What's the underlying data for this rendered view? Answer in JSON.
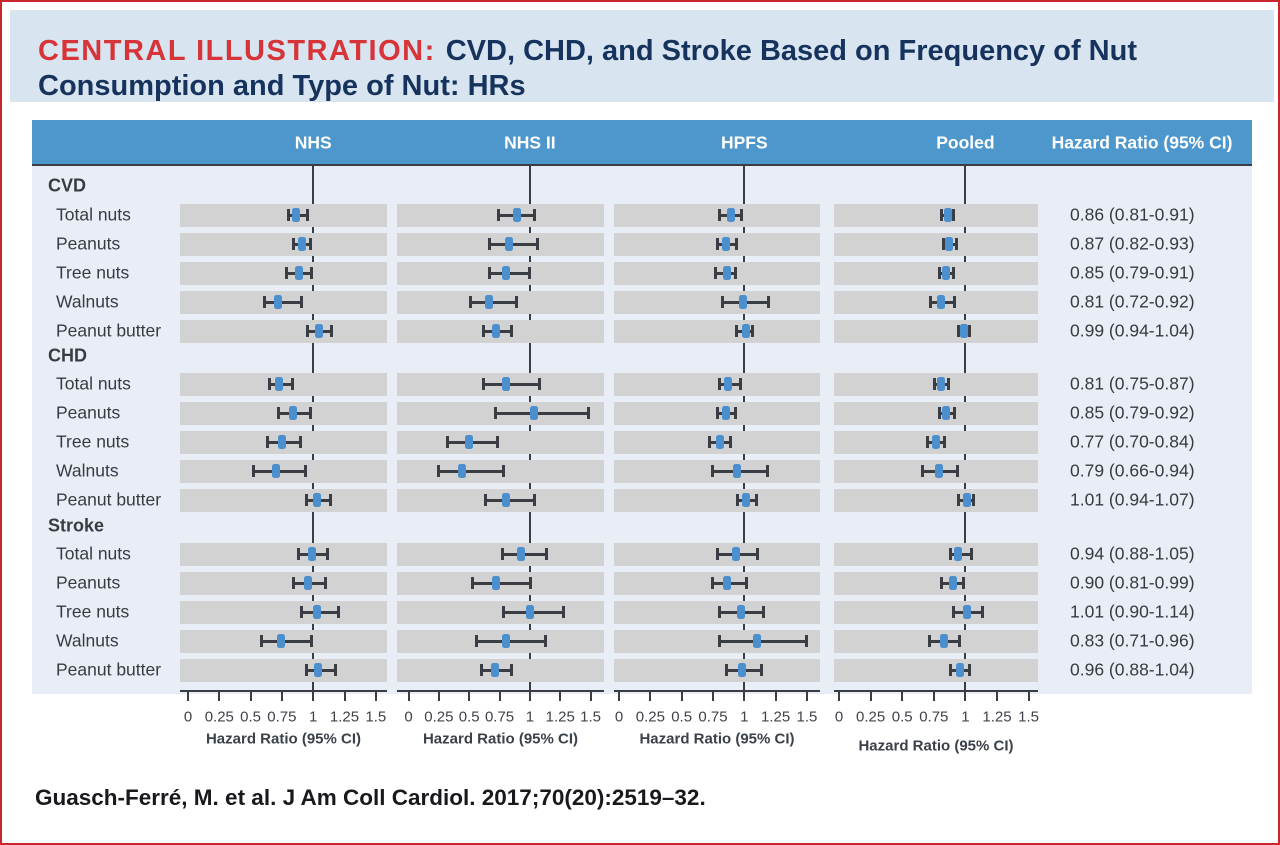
{
  "title": {
    "prefix": "CENTRAL ILLUSTRATION:",
    "text": "CVD, CHD, and Stroke Based on Frequency of Nut Consumption and Type of Nut: HRs"
  },
  "citation": "Guasch-Ferré, M. et al. J Am Coll Cardiol. 2017;70(20):2519–32.",
  "header": {
    "columns": [
      "NHS",
      "NHS II",
      "HPFS",
      "Pooled"
    ],
    "hr_column": "Hazard Ratio (95% CI)"
  },
  "colors": {
    "accent_red": "#d63438",
    "navy": "#16335e",
    "header_blue": "#4d97cd",
    "title_band_blue": "#d8e4f0",
    "body_blue": "#e9eef6",
    "row_bar_gray": "#d2d2d2",
    "ci_line": "#3a3e44",
    "marker_blue": "#4b8fce",
    "border_red": "#c9252c"
  },
  "chart_data": {
    "type": "forest",
    "cohorts": [
      "NHS",
      "NHS II",
      "HPFS",
      "Pooled"
    ],
    "axis": {
      "label": "Hazard Ratio (95% CI)",
      "range": [
        0,
        1.5
      ],
      "ticks": [
        0,
        0.25,
        0.5,
        0.75,
        1,
        1.25,
        1.5
      ],
      "tick_labels": [
        "0",
        "0.25",
        "0.5",
        "0.75",
        "1",
        "1.25",
        "1.5"
      ],
      "reference_line": 1
    },
    "estimate_format": "[estimate, ci_low, ci_high] per cohort, read from plot; Pooled from printed text",
    "groups": [
      {
        "name": "CVD",
        "rows": [
          {
            "label": "Total nuts",
            "hr_text": "0.86 (0.81-0.91)",
            "estimates": [
              [
                0.86,
                0.8,
                0.96
              ],
              [
                0.89,
                0.74,
                1.04
              ],
              [
                0.89,
                0.8,
                0.98
              ],
              [
                0.86,
                0.81,
                0.91
              ]
            ]
          },
          {
            "label": "Peanuts",
            "hr_text": "0.87 (0.82-0.93)",
            "estimates": [
              [
                0.91,
                0.84,
                0.98
              ],
              [
                0.83,
                0.66,
                1.07
              ],
              [
                0.85,
                0.78,
                0.94
              ],
              [
                0.87,
                0.82,
                0.93
              ]
            ]
          },
          {
            "label": "Tree nuts",
            "hr_text": "0.85 (0.79-0.91)",
            "estimates": [
              [
                0.89,
                0.78,
                0.99
              ],
              [
                0.8,
                0.66,
                1.0
              ],
              [
                0.86,
                0.77,
                0.93
              ],
              [
                0.85,
                0.79,
                0.91
              ]
            ]
          },
          {
            "label": "Walnuts",
            "hr_text": "0.81 (0.72-0.92)",
            "estimates": [
              [
                0.72,
                0.61,
                0.91
              ],
              [
                0.66,
                0.51,
                0.89
              ],
              [
                0.99,
                0.82,
                1.2
              ],
              [
                0.81,
                0.72,
                0.92
              ]
            ]
          },
          {
            "label": "Peanut butter",
            "hr_text": "0.99 (0.94-1.04)",
            "estimates": [
              [
                1.05,
                0.95,
                1.15
              ],
              [
                0.72,
                0.61,
                0.85
              ],
              [
                1.01,
                0.93,
                1.07
              ],
              [
                0.99,
                0.94,
                1.04
              ]
            ]
          }
        ]
      },
      {
        "name": "CHD",
        "rows": [
          {
            "label": "Total nuts",
            "hr_text": "0.81 (0.75-0.87)",
            "estimates": [
              [
                0.73,
                0.65,
                0.84
              ],
              [
                0.8,
                0.61,
                1.08
              ],
              [
                0.87,
                0.8,
                0.97
              ],
              [
                0.81,
                0.75,
                0.87
              ]
            ]
          },
          {
            "label": "Peanuts",
            "hr_text": "0.85 (0.79-0.92)",
            "estimates": [
              [
                0.84,
                0.72,
                0.98
              ],
              [
                1.03,
                0.71,
                1.49
              ],
              [
                0.85,
                0.78,
                0.93
              ],
              [
                0.85,
                0.79,
                0.92
              ]
            ]
          },
          {
            "label": "Tree nuts",
            "hr_text": "0.77 (0.70-0.84)",
            "estimates": [
              [
                0.75,
                0.63,
                0.9
              ],
              [
                0.5,
                0.32,
                0.74
              ],
              [
                0.81,
                0.72,
                0.89
              ],
              [
                0.77,
                0.7,
                0.84
              ]
            ]
          },
          {
            "label": "Walnuts",
            "hr_text": "0.79 (0.66-0.94)",
            "estimates": [
              [
                0.7,
                0.52,
                0.94
              ],
              [
                0.44,
                0.24,
                0.79
              ],
              [
                0.94,
                0.74,
                1.19
              ],
              [
                0.79,
                0.66,
                0.94
              ]
            ]
          },
          {
            "label": "Peanut butter",
            "hr_text": "1.01 (0.94-1.07)",
            "estimates": [
              [
                1.03,
                0.94,
                1.14
              ],
              [
                0.8,
                0.63,
                1.04
              ],
              [
                1.01,
                0.94,
                1.1
              ],
              [
                1.01,
                0.94,
                1.07
              ]
            ]
          }
        ]
      },
      {
        "name": "Stroke",
        "rows": [
          {
            "label": "Total nuts",
            "hr_text": "0.94 (0.88-1.05)",
            "estimates": [
              [
                0.99,
                0.88,
                1.12
              ],
              [
                0.93,
                0.77,
                1.14
              ],
              [
                0.93,
                0.78,
                1.11
              ],
              [
                0.94,
                0.88,
                1.05
              ]
            ]
          },
          {
            "label": "Peanuts",
            "hr_text": "0.90 (0.81-0.99)",
            "estimates": [
              [
                0.96,
                0.84,
                1.1
              ],
              [
                0.72,
                0.52,
                1.01
              ],
              [
                0.86,
                0.74,
                1.02
              ],
              [
                0.9,
                0.81,
                0.99
              ]
            ]
          },
          {
            "label": "Tree nuts",
            "hr_text": "1.01 (0.90-1.14)",
            "estimates": [
              [
                1.03,
                0.9,
                1.21
              ],
              [
                1.0,
                0.78,
                1.28
              ],
              [
                0.97,
                0.8,
                1.16
              ],
              [
                1.01,
                0.9,
                1.14
              ]
            ]
          },
          {
            "label": "Walnuts",
            "hr_text": "0.83 (0.71-0.96)",
            "estimates": [
              [
                0.74,
                0.58,
                0.99
              ],
              [
                0.8,
                0.56,
                1.13
              ],
              [
                1.1,
                0.8,
                1.5
              ],
              [
                0.83,
                0.71,
                0.96
              ]
            ]
          },
          {
            "label": "Peanut butter",
            "hr_text": "0.96 (0.88-1.04)",
            "estimates": [
              [
                1.04,
                0.94,
                1.18
              ],
              [
                0.71,
                0.6,
                0.85
              ],
              [
                0.98,
                0.85,
                1.14
              ],
              [
                0.96,
                0.88,
                1.04
              ]
            ]
          }
        ]
      }
    ]
  }
}
